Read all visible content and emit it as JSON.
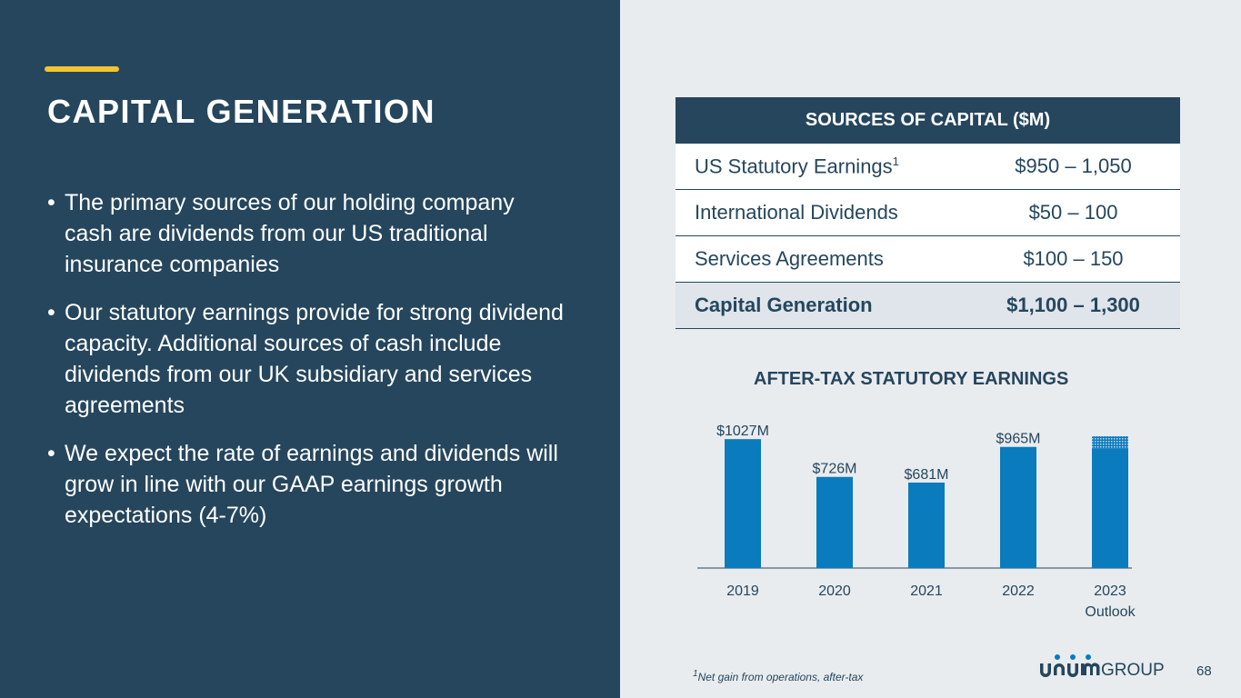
{
  "slide": {
    "title": "CAPITAL GENERATION",
    "bullets": [
      "The primary sources of our holding company cash are dividends from our US traditional insurance companies",
      "Our statutory earnings provide for strong dividend capacity. Additional sources of cash include dividends from our UK subsidiary and services agreements",
      "We expect the rate of earnings and dividends will grow in line with our GAAP earnings growth expectations (4-7%)"
    ],
    "bullet_symbol": "•",
    "page_number": "68",
    "footnote": {
      "marker": "1",
      "text": "Net gain from operations, after-tax"
    },
    "logo_text": "UNUM GROUP"
  },
  "table": {
    "header": "SOURCES OF CAPITAL ($M)",
    "rows": [
      {
        "label": "US Statutory Earnings",
        "sup": "1",
        "value": "$950 – 1,050"
      },
      {
        "label": "International Dividends",
        "value": "$50 – 100"
      },
      {
        "label": "Services Agreements",
        "value": "$100 – 150"
      },
      {
        "label": "Capital Generation",
        "value": "$1,100 – 1,300",
        "total": true
      }
    ]
  },
  "chart_data": {
    "type": "bar",
    "title": "AFTER-TAX STATUTORY EARNINGS",
    "categories": [
      "2019",
      "2020",
      "2021",
      "2022",
      "2023\nOutlook"
    ],
    "values": [
      1027,
      726,
      681,
      965,
      1000
    ],
    "data_labels": [
      "$1027M",
      "$726M",
      "$681M",
      "$965M",
      ""
    ],
    "outlook_range": [
      950,
      1050
    ],
    "ylim": [
      0,
      1050
    ],
    "grid": false,
    "xlabel": "",
    "ylabel": ""
  },
  "colors": {
    "navy": "#25465d",
    "accent": "#f4c430",
    "bar_blue": "#0a7bbd",
    "background_light": "#e9ecef",
    "total_row": "#dfe5ea"
  }
}
